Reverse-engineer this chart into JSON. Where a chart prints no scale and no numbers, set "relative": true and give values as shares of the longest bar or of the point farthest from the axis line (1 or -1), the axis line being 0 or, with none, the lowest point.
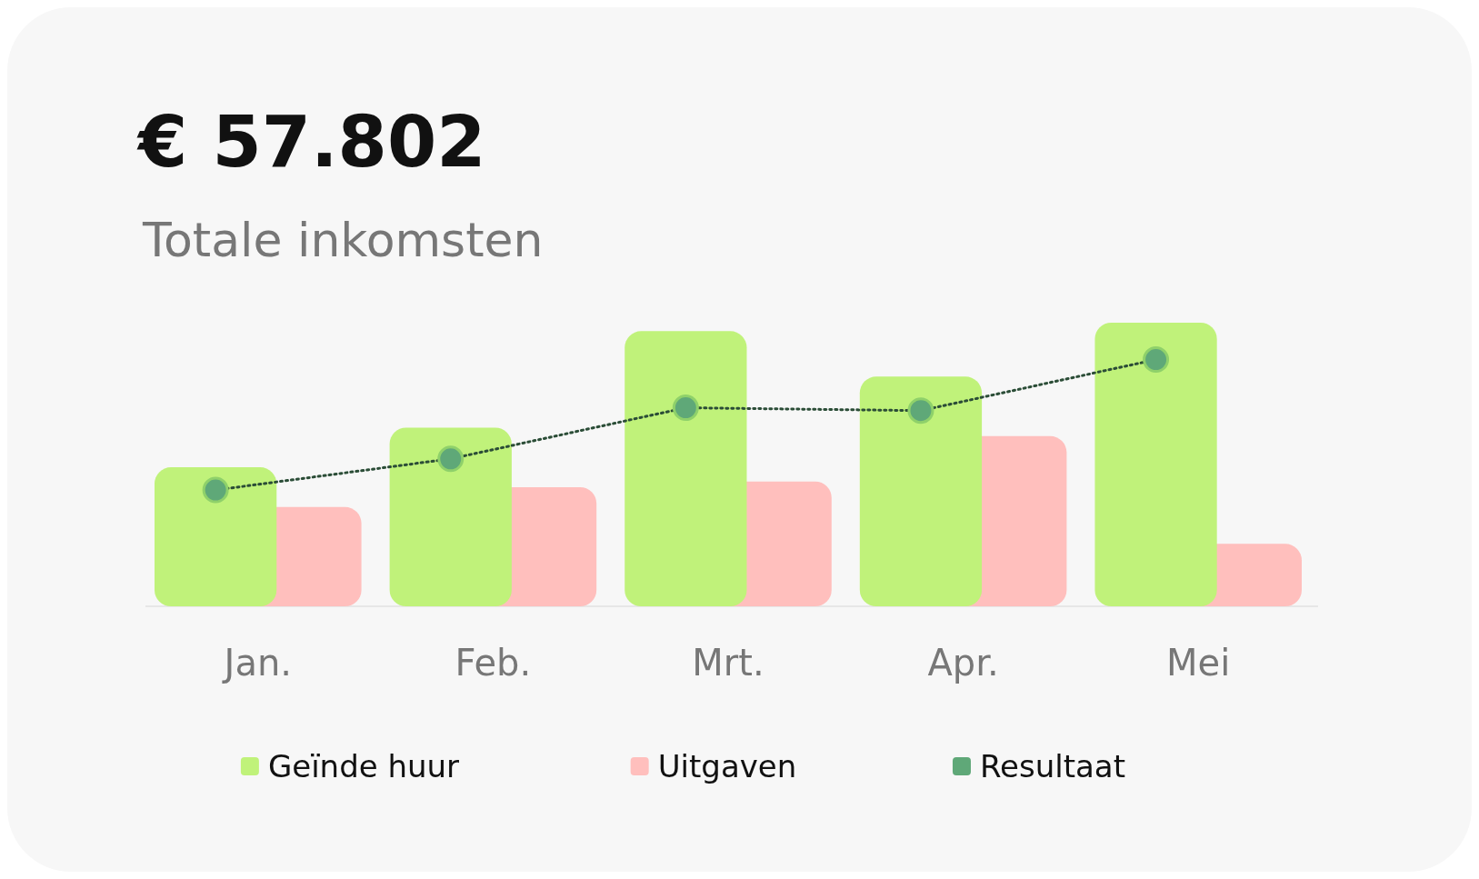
{
  "chart_data": {
    "type": "bar",
    "title": "€ 57.802",
    "subtitle": "Totale inkomsten",
    "relative": true,
    "categories": [
      "Jan.",
      "Feb.",
      "Mrt.",
      "Apr.",
      "Mei"
    ],
    "series": [
      {
        "name": "Geïnde huur",
        "color": "#c0f27a",
        "values": [
          0.49,
          0.63,
          0.97,
          0.81,
          1
        ]
      },
      {
        "name": "Uitgaven",
        "color": "#ffbfbd",
        "values": [
          0.35,
          0.42,
          0.44,
          0.6,
          0.22
        ]
      },
      {
        "name": "Resultaat",
        "type": "line",
        "color": "#5fa878",
        "marker": "circle",
        "line_style": "dotted",
        "values": [
          0.41,
          0.52,
          0.7,
          0.69,
          0.87
        ]
      }
    ],
    "legend": "bottom"
  }
}
